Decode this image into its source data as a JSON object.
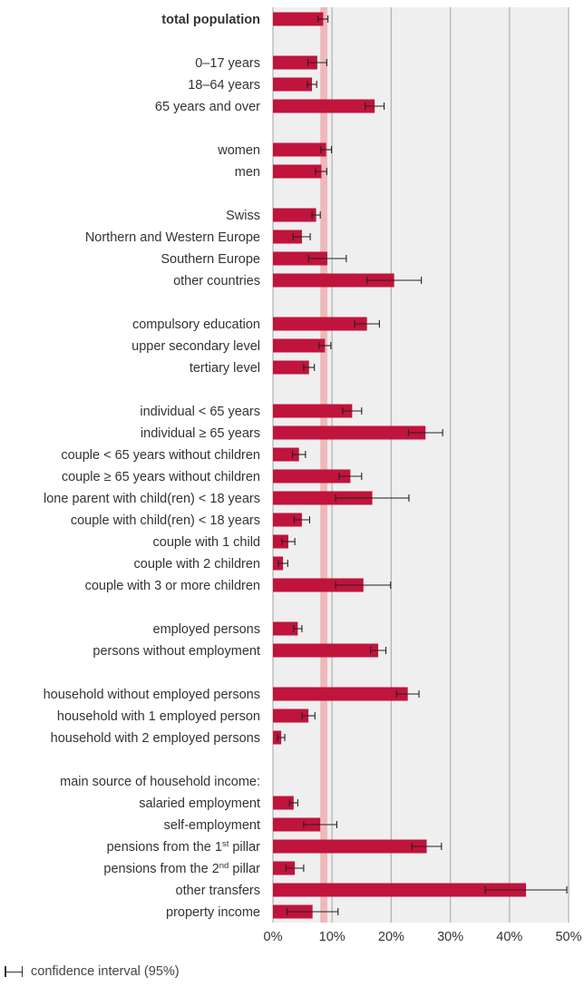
{
  "chart_data": {
    "type": "bar",
    "orientation": "horizontal",
    "xlim": [
      0,
      50
    ],
    "x_ticks": [
      "0%",
      "10%",
      "20%",
      "30%",
      "40%",
      "50%"
    ],
    "reference_band": [
      8,
      9.2
    ],
    "colors": {
      "bar": "#c0143c",
      "band": "#f0b9b9",
      "plot_bg": "#efefef",
      "grid": "#b5b5b5"
    },
    "legend": {
      "icon": "confidence-interval-icon",
      "label": "confidence interval (95%)",
      "placement": "bottom-left"
    },
    "rows": [
      {
        "label": "total population",
        "bold": true,
        "value": 8.5,
        "ci": [
          7.6,
          9.3
        ]
      },
      {
        "label": ""
      },
      {
        "label": "0–17 years",
        "value": 7.5,
        "ci": [
          5.9,
          9.1
        ]
      },
      {
        "label": "18–64 years",
        "value": 6.6,
        "ci": [
          5.8,
          7.4
        ]
      },
      {
        "label": "65 years and over",
        "value": 17.2,
        "ci": [
          15.6,
          18.8
        ]
      },
      {
        "label": ""
      },
      {
        "label": "women",
        "value": 9.0,
        "ci": [
          8.1,
          9.9
        ]
      },
      {
        "label": "men",
        "value": 8.2,
        "ci": [
          7.2,
          9.1
        ]
      },
      {
        "label": ""
      },
      {
        "label": "Swiss",
        "value": 7.3,
        "ci": [
          6.6,
          8.0
        ]
      },
      {
        "label": "Northern and Western Europe",
        "value": 4.9,
        "ci": [
          3.4,
          6.3
        ]
      },
      {
        "label": "Southern Europe",
        "value": 9.2,
        "ci": [
          6.0,
          12.4
        ]
      },
      {
        "label": "other countries",
        "value": 20.5,
        "ci": [
          15.9,
          25.1
        ]
      },
      {
        "label": ""
      },
      {
        "label": "compulsory education",
        "value": 15.9,
        "ci": [
          13.8,
          18.0
        ]
      },
      {
        "label": "upper secondary level",
        "value": 8.8,
        "ci": [
          7.8,
          9.8
        ]
      },
      {
        "label": "tertiary level",
        "value": 6.1,
        "ci": [
          5.2,
          7.0
        ]
      },
      {
        "label": ""
      },
      {
        "label": "individual < 65 years",
        "value": 13.4,
        "ci": [
          11.8,
          15.0
        ]
      },
      {
        "label": "individual  ≥ 65 years",
        "value": 25.8,
        "ci": [
          22.9,
          28.7
        ]
      },
      {
        "label": "couple < 65 years without children",
        "value": 4.4,
        "ci": [
          3.3,
          5.5
        ]
      },
      {
        "label": "couple ≥ 65 years without children",
        "value": 13.1,
        "ci": [
          11.2,
          15.0
        ]
      },
      {
        "label": "lone parent with child(ren) < 18 years",
        "value": 16.8,
        "ci": [
          10.6,
          23.0
        ]
      },
      {
        "label": "couple with child(ren) < 18 years",
        "value": 4.9,
        "ci": [
          3.6,
          6.2
        ]
      },
      {
        "label": "couple with 1 child",
        "value": 2.6,
        "ci": [
          1.5,
          3.7
        ]
      },
      {
        "label": "couple with 2 children",
        "value": 1.7,
        "ci": [
          0.9,
          2.5
        ]
      },
      {
        "label": "couple with 3 or more children",
        "value": 15.3,
        "ci": [
          10.6,
          19.9
        ]
      },
      {
        "label": ""
      },
      {
        "label": "employed persons",
        "value": 4.2,
        "ci": [
          3.5,
          4.9
        ]
      },
      {
        "label": "persons without employment",
        "value": 17.8,
        "ci": [
          16.5,
          19.1
        ]
      },
      {
        "label": ""
      },
      {
        "label": "household without employed persons",
        "value": 22.8,
        "ci": [
          20.9,
          24.7
        ]
      },
      {
        "label": "household with 1 employed person",
        "value": 6.0,
        "ci": [
          4.9,
          7.1
        ]
      },
      {
        "label": "household with 2 employed persons",
        "value": 1.4,
        "ci": [
          0.8,
          2.0
        ]
      },
      {
        "label": ""
      },
      {
        "label": "main source of household income:",
        "header": true
      },
      {
        "label": "salaried employment",
        "value": 3.5,
        "ci": [
          2.8,
          4.2
        ]
      },
      {
        "label": "self-employment",
        "value": 8.0,
        "ci": [
          5.2,
          10.8
        ]
      },
      {
        "label": "pensions from the 1",
        "sup": "st",
        "label_end": " pillar",
        "value": 26.0,
        "ci": [
          23.5,
          28.5
        ]
      },
      {
        "label": "pensions from the 2",
        "sup": "nd",
        "label_end": " pillar",
        "value": 3.7,
        "ci": [
          2.2,
          5.2
        ]
      },
      {
        "label": "other transfers",
        "value": 42.8,
        "ci": [
          35.9,
          49.7
        ]
      },
      {
        "label": "property income",
        "value": 6.7,
        "ci": [
          2.4,
          11.0
        ]
      }
    ]
  }
}
